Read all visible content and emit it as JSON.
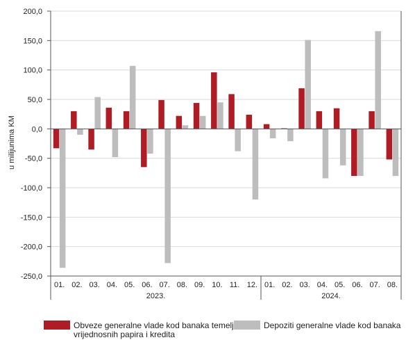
{
  "chart_data": {
    "type": "bar",
    "title": "",
    "ylabel": "u milijunima KM",
    "xlabel": "",
    "ylim": [
      -250,
      200
    ],
    "yticks": [
      200,
      150,
      100,
      50,
      0,
      -50,
      -100,
      -150,
      -200,
      -250
    ],
    "ytick_labels": [
      "200,0",
      "150,0",
      "100,0",
      "50,0",
      "0,0",
      "-50,0",
      "-100,0",
      "-150,0",
      "-200,0",
      "-250,0"
    ],
    "categories": [
      "01.",
      "02.",
      "03.",
      "04.",
      "05.",
      "06.",
      "07.",
      "08.",
      "09.",
      "10.",
      "11.",
      "12.",
      "01.",
      "02.",
      "03.",
      "04.",
      "05.",
      "06.",
      "07.",
      "08."
    ],
    "year_groups": [
      {
        "label": "2023.",
        "count": 12
      },
      {
        "label": "2024.",
        "count": 8
      }
    ],
    "legend_position": "bottom",
    "series": [
      {
        "name": "Obveze generalne vlade kod banaka temeljem vrijednosnih papira i kredita",
        "color": "#b01c24",
        "values": [
          -33,
          30,
          -35,
          36,
          30,
          -65,
          49,
          22,
          44,
          96,
          59,
          24,
          8,
          1,
          69,
          30,
          35,
          -80,
          30,
          -52
        ]
      },
      {
        "name": "Depoziti generalne vlade kod banaka",
        "color": "#bdbdbd",
        "values": [
          -236,
          -10,
          54,
          -48,
          107,
          -42,
          -228,
          6,
          22,
          45,
          -38,
          -120,
          -16,
          -21,
          151,
          -84,
          -62,
          -80,
          166,
          -80
        ]
      }
    ]
  }
}
